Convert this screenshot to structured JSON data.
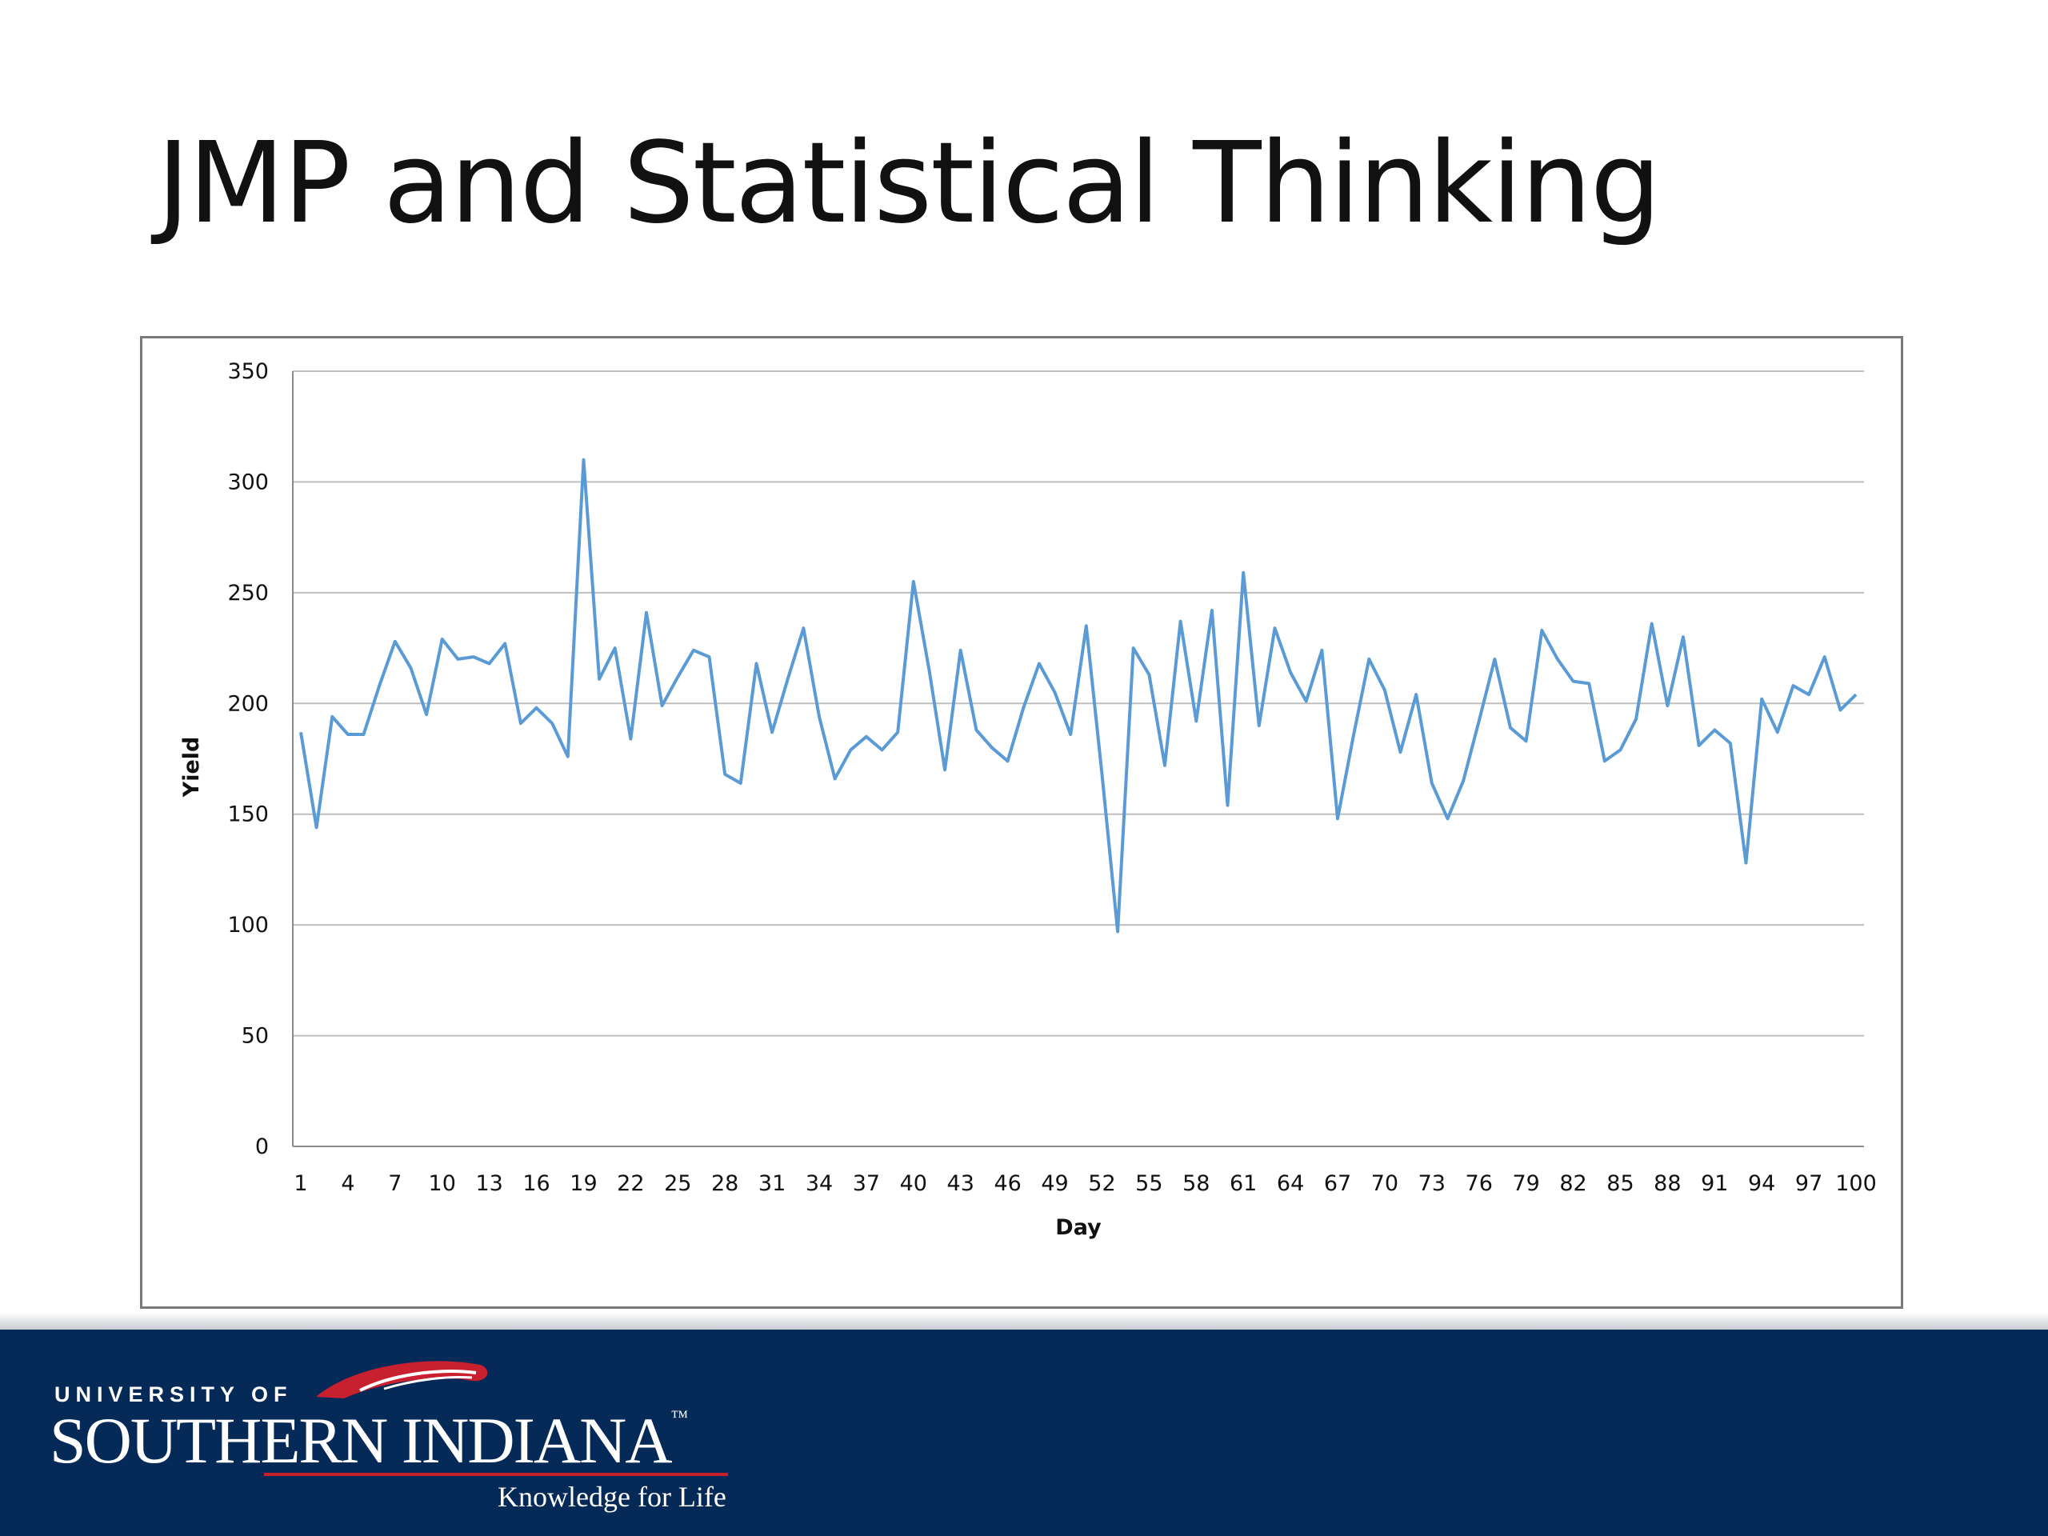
{
  "slide": {
    "title": "JMP and Statistical Thinking"
  },
  "logo": {
    "top_line": "UNIVERSITY OF",
    "name": "SOUTHERN INDIANA",
    "trademark": "™",
    "tagline": "Knowledge for Life"
  },
  "colors": {
    "series": "#5b9bd5",
    "footer": "#062a57",
    "accent": "#c8202f",
    "grid": "#bfbfbf"
  },
  "chart_data": {
    "type": "line",
    "title": "",
    "xlabel": "Day",
    "ylabel": "Yield",
    "ylim": [
      0,
      350
    ],
    "yticks": [
      0,
      50,
      100,
      150,
      200,
      250,
      300,
      350
    ],
    "xtick_labels": [
      "1",
      "4",
      "7",
      "10",
      "13",
      "16",
      "19",
      "22",
      "25",
      "28",
      "31",
      "34",
      "37",
      "40",
      "43",
      "46",
      "49",
      "52",
      "55",
      "58",
      "61",
      "64",
      "67",
      "70",
      "73",
      "76",
      "79",
      "82",
      "85",
      "88",
      "91",
      "94",
      "97",
      "100"
    ],
    "grid": "horizontal",
    "legend": "none",
    "x_start": 1,
    "values": [
      187,
      144,
      194,
      186,
      186,
      208,
      228,
      216,
      195,
      229,
      220,
      221,
      218,
      227,
      191,
      198,
      191,
      176,
      310,
      211,
      225,
      184,
      241,
      199,
      212,
      224,
      221,
      168,
      164,
      218,
      187,
      211,
      234,
      194,
      166,
      179,
      185,
      179,
      187,
      255,
      215,
      170,
      224,
      188,
      180,
      174,
      198,
      218,
      205,
      186,
      235,
      168,
      97,
      225,
      213,
      172,
      237,
      192,
      242,
      154,
      259,
      190,
      234,
      214,
      201,
      224,
      148,
      185,
      220,
      206,
      178,
      204,
      164,
      148,
      165,
      192,
      220,
      189,
      183,
      233,
      220,
      210,
      209,
      174,
      179,
      193,
      236,
      199,
      230,
      181,
      188,
      182,
      128,
      202,
      187,
      208,
      204,
      221,
      197,
      204
    ]
  }
}
